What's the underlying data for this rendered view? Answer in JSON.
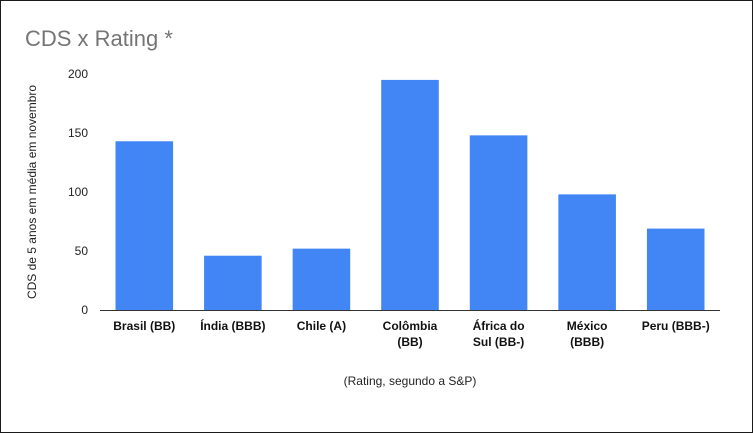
{
  "chart_data": {
    "type": "bar",
    "title": "CDS x Rating *",
    "xlabel": "(Rating, segundo a S&P)",
    "ylabel": "CDS de 5 anos em média em novembro",
    "categories": [
      [
        "Brasil (BB)"
      ],
      [
        "Índia (BBB)"
      ],
      [
        "Chile (A)"
      ],
      [
        "Colômbia",
        "(BB)"
      ],
      [
        "África do",
        "Sul (BB-)"
      ],
      [
        "México",
        "(BBB)"
      ],
      [
        "Peru (BBB-)"
      ]
    ],
    "values": [
      143,
      46,
      52,
      195,
      148,
      98,
      69
    ],
    "ylim": [
      0,
      200
    ],
    "yticks": [
      "0",
      "50",
      "100",
      "150",
      "200"
    ],
    "grid": false,
    "bar_color": "#4285f4"
  }
}
